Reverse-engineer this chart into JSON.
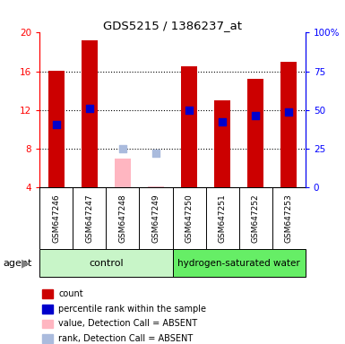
{
  "title": "GDS5215 / 1386237_at",
  "samples": [
    "GSM647246",
    "GSM647247",
    "GSM647248",
    "GSM647249",
    "GSM647250",
    "GSM647251",
    "GSM647252",
    "GSM647253"
  ],
  "count_values": [
    16.1,
    19.2,
    7.0,
    4.15,
    16.5,
    13.0,
    15.2,
    17.0
  ],
  "rank_values": [
    10.5,
    12.2,
    8.05,
    7.5,
    12.0,
    10.8,
    11.4,
    11.8
  ],
  "absent_flags": [
    false,
    false,
    true,
    true,
    false,
    false,
    false,
    false
  ],
  "ylim_left": [
    4,
    20
  ],
  "ylim_right": [
    0,
    100
  ],
  "yticks_left": [
    4,
    8,
    12,
    16,
    20
  ],
  "yticks_right": [
    0,
    25,
    50,
    75,
    100
  ],
  "ytick_labels_right": [
    "0",
    "25",
    "50",
    "75",
    "100%"
  ],
  "ytick_labels_left": [
    "4",
    "8",
    "12",
    "16",
    "20"
  ],
  "control_color": "#C8F5C8",
  "hydrogen_color": "#66EE66",
  "bar_color_present": "#CC0000",
  "bar_color_absent": "#FFB6C1",
  "rank_color_present": "#0000CC",
  "rank_color_absent": "#AABBDD",
  "bar_width": 0.5,
  "rank_marker_size": 40,
  "legend_items": [
    {
      "label": "count",
      "color": "#CC0000"
    },
    {
      "label": "percentile rank within the sample",
      "color": "#0000CC"
    },
    {
      "label": "value, Detection Call = ABSENT",
      "color": "#FFB6C1"
    },
    {
      "label": "rank, Detection Call = ABSENT",
      "color": "#AABBDD"
    }
  ],
  "bar_bottom": 4,
  "sample_box_color": "#C8C8C8"
}
